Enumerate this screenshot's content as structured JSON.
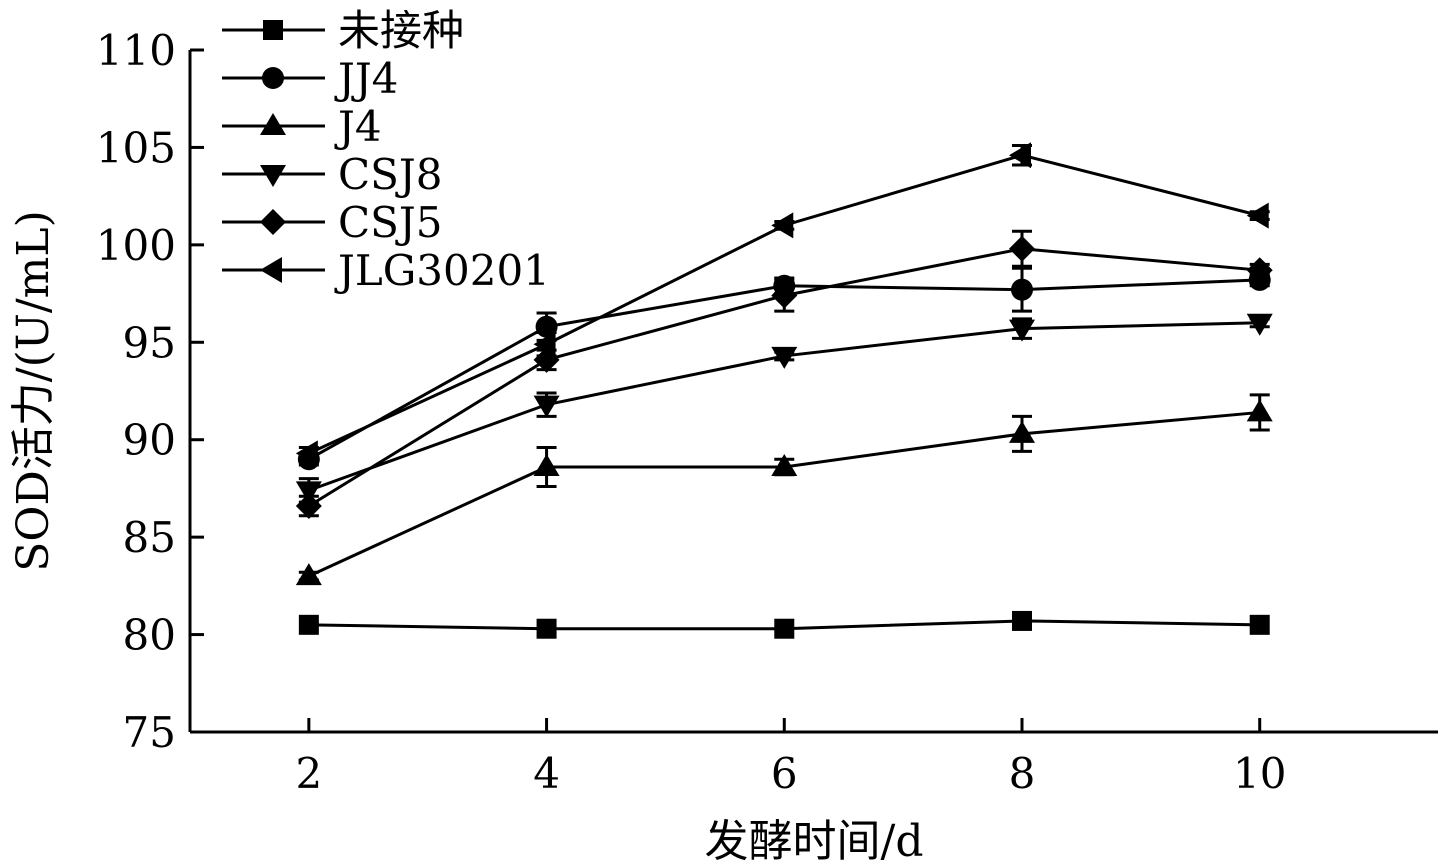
{
  "chart_data": {
    "type": "line",
    "xlabel": "发酵时间/d",
    "ylabel": "SOD活力/(U/mL)",
    "xlim": [
      1.0,
      11.5
    ],
    "ylim": [
      75,
      110
    ],
    "xticks": [
      2,
      4,
      6,
      8,
      10
    ],
    "yticks": [
      75,
      80,
      85,
      90,
      95,
      100,
      105,
      110
    ],
    "x": [
      2,
      4,
      6,
      8,
      10
    ],
    "legend_position": "top-left",
    "grid": false,
    "series": [
      {
        "name": "未接种",
        "marker": "square",
        "values": [
          80.5,
          80.3,
          80.3,
          80.7,
          80.5
        ],
        "errors": [
          0,
          0,
          0,
          0,
          0
        ]
      },
      {
        "name": "JJ4",
        "marker": "circle",
        "values": [
          89.0,
          95.8,
          97.9,
          97.7,
          98.2
        ],
        "errors": [
          0.3,
          0.7,
          0.4,
          1.1,
          0.3
        ]
      },
      {
        "name": "J4",
        "marker": "triangle-up",
        "values": [
          83.0,
          88.6,
          88.6,
          90.3,
          91.4
        ],
        "errors": [
          0.2,
          1.0,
          0.4,
          0.9,
          0.9
        ]
      },
      {
        "name": "CSJ8",
        "marker": "triangle-down",
        "values": [
          87.4,
          91.8,
          94.3,
          95.7,
          96.0
        ],
        "errors": [
          0.6,
          0.6,
          0.2,
          0.5,
          0.2
        ]
      },
      {
        "name": "CSJ5",
        "marker": "diamond",
        "values": [
          86.6,
          94.1,
          97.4,
          99.8,
          98.7
        ],
        "errors": [
          0.5,
          0.5,
          0.8,
          0.9,
          0.3
        ]
      },
      {
        "name": "JLG30201",
        "marker": "triangle-left",
        "values": [
          89.3,
          94.9,
          101.0,
          104.6,
          101.5
        ],
        "errors": [
          0.3,
          0.6,
          0.2,
          0.5,
          0.2
        ]
      }
    ]
  }
}
